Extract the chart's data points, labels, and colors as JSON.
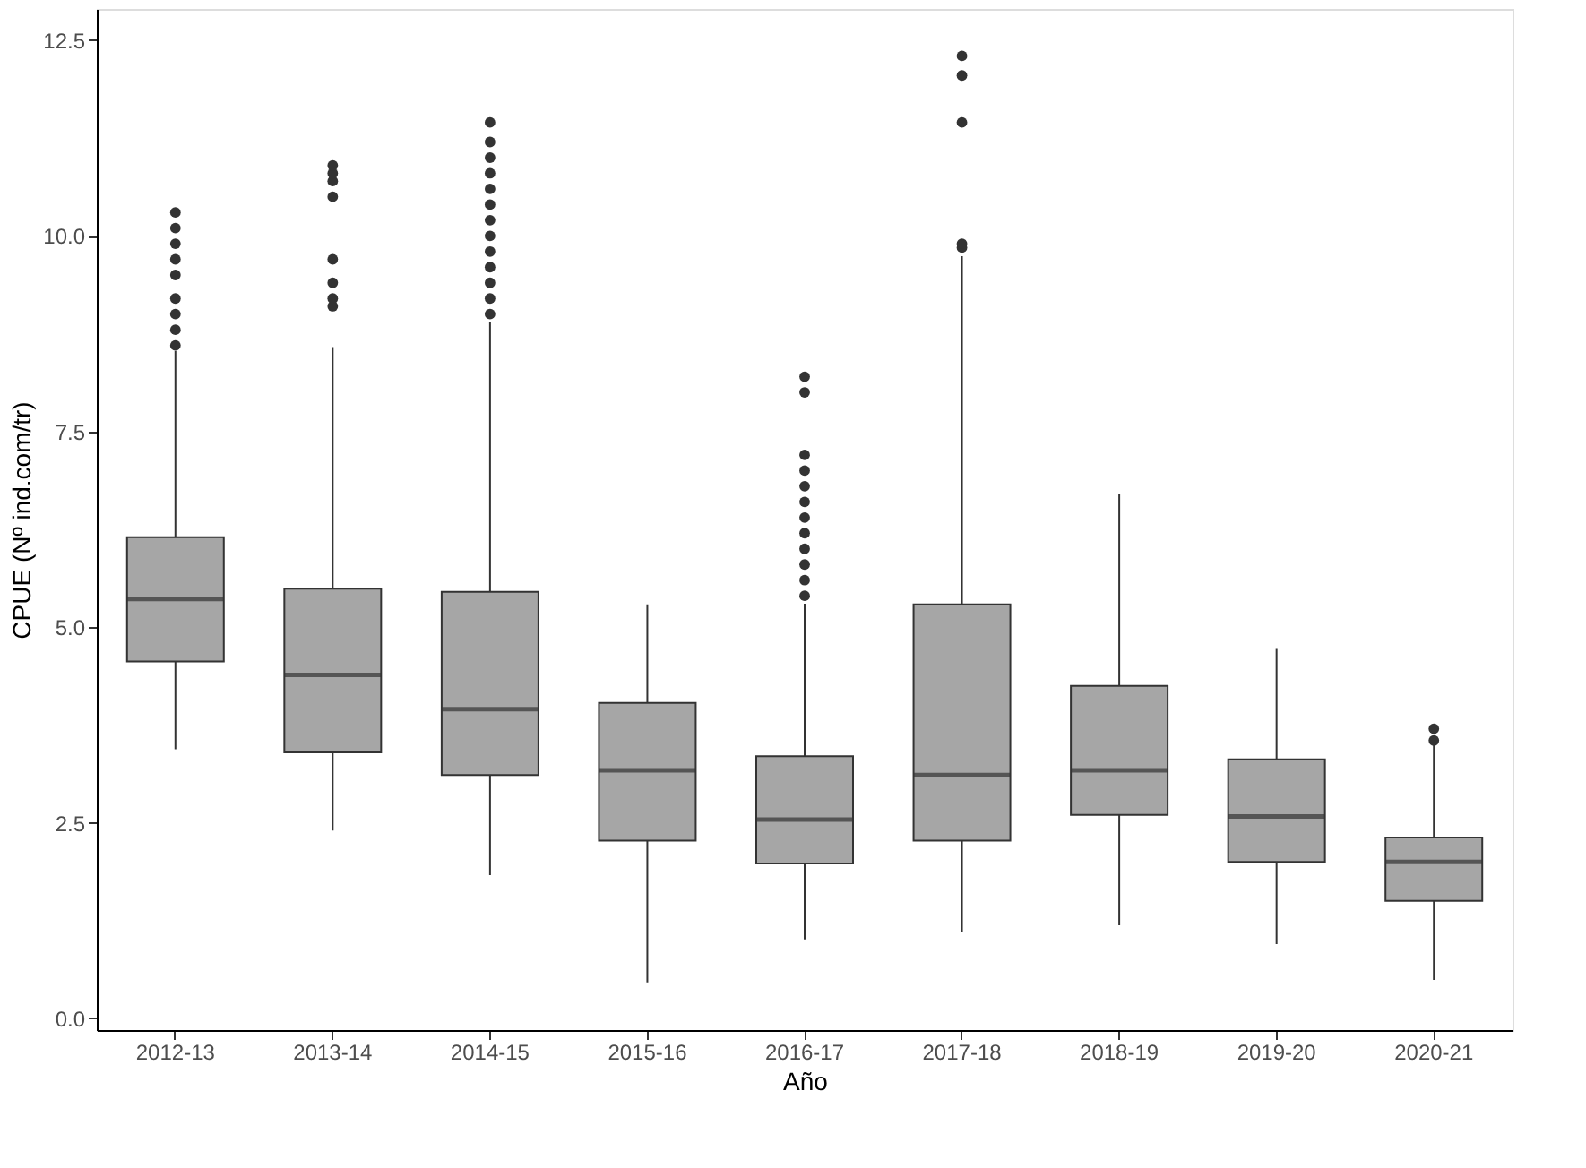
{
  "chart_data": {
    "type": "box",
    "xlabel": "Año",
    "ylabel": "CPUE (Nº ind.com/tr)",
    "categories": [
      "2012-13",
      "2013-14",
      "2014-15",
      "2015-16",
      "2016-17",
      "2017-18",
      "2018-19",
      "2019-20",
      "2020-21"
    ],
    "boxes": [
      {
        "low": 3.44,
        "q1": 4.56,
        "median": 5.36,
        "q3": 6.15,
        "high": 8.53,
        "outliers": [
          8.6,
          8.8,
          9.0,
          9.2,
          9.5,
          9.7,
          9.9,
          10.1,
          10.3
        ]
      },
      {
        "low": 2.4,
        "q1": 3.4,
        "median": 4.39,
        "q3": 5.49,
        "high": 8.58,
        "outliers": [
          9.1,
          9.2,
          9.4,
          9.7,
          10.5,
          10.7,
          10.8,
          10.9
        ]
      },
      {
        "low": 1.83,
        "q1": 3.11,
        "median": 3.95,
        "q3": 5.45,
        "high": 8.9,
        "outliers": [
          9.0,
          9.2,
          9.4,
          9.6,
          9.8,
          10.0,
          10.2,
          10.4,
          10.6,
          10.8,
          11.0,
          11.2,
          11.45
        ]
      },
      {
        "low": 0.46,
        "q1": 2.27,
        "median": 3.17,
        "q3": 4.03,
        "high": 5.29
      },
      {
        "low": 1.01,
        "q1": 1.98,
        "median": 2.54,
        "q3": 3.35,
        "high": 5.3,
        "outliers": [
          5.4,
          5.6,
          5.8,
          6.0,
          6.2,
          6.4,
          6.6,
          6.8,
          7.0,
          7.2,
          8.0,
          8.2
        ]
      },
      {
        "low": 1.1,
        "q1": 2.27,
        "median": 3.11,
        "q3": 5.29,
        "high": 9.74,
        "outliers": [
          9.85,
          9.9,
          11.45,
          12.05,
          12.3
        ]
      },
      {
        "low": 1.19,
        "q1": 2.6,
        "median": 3.17,
        "q3": 4.25,
        "high": 6.7
      },
      {
        "low": 0.95,
        "q1": 2.0,
        "median": 2.58,
        "q3": 3.31,
        "high": 4.72
      },
      {
        "low": 0.49,
        "q1": 1.5,
        "median": 2.0,
        "q3": 2.31,
        "high": 3.53,
        "outliers": [
          3.55,
          3.7
        ]
      }
    ],
    "color": "#a6a6a6",
    "ylim": [
      -0.15,
      12.9
    ],
    "yticks": [
      {
        "value": 0,
        "label": "0.0"
      },
      2.5,
      {
        "value": 5,
        "label": "5.0"
      },
      7.5,
      {
        "value": 10,
        "label": "10.0"
      },
      12.5
    ],
    "grid": false
  }
}
